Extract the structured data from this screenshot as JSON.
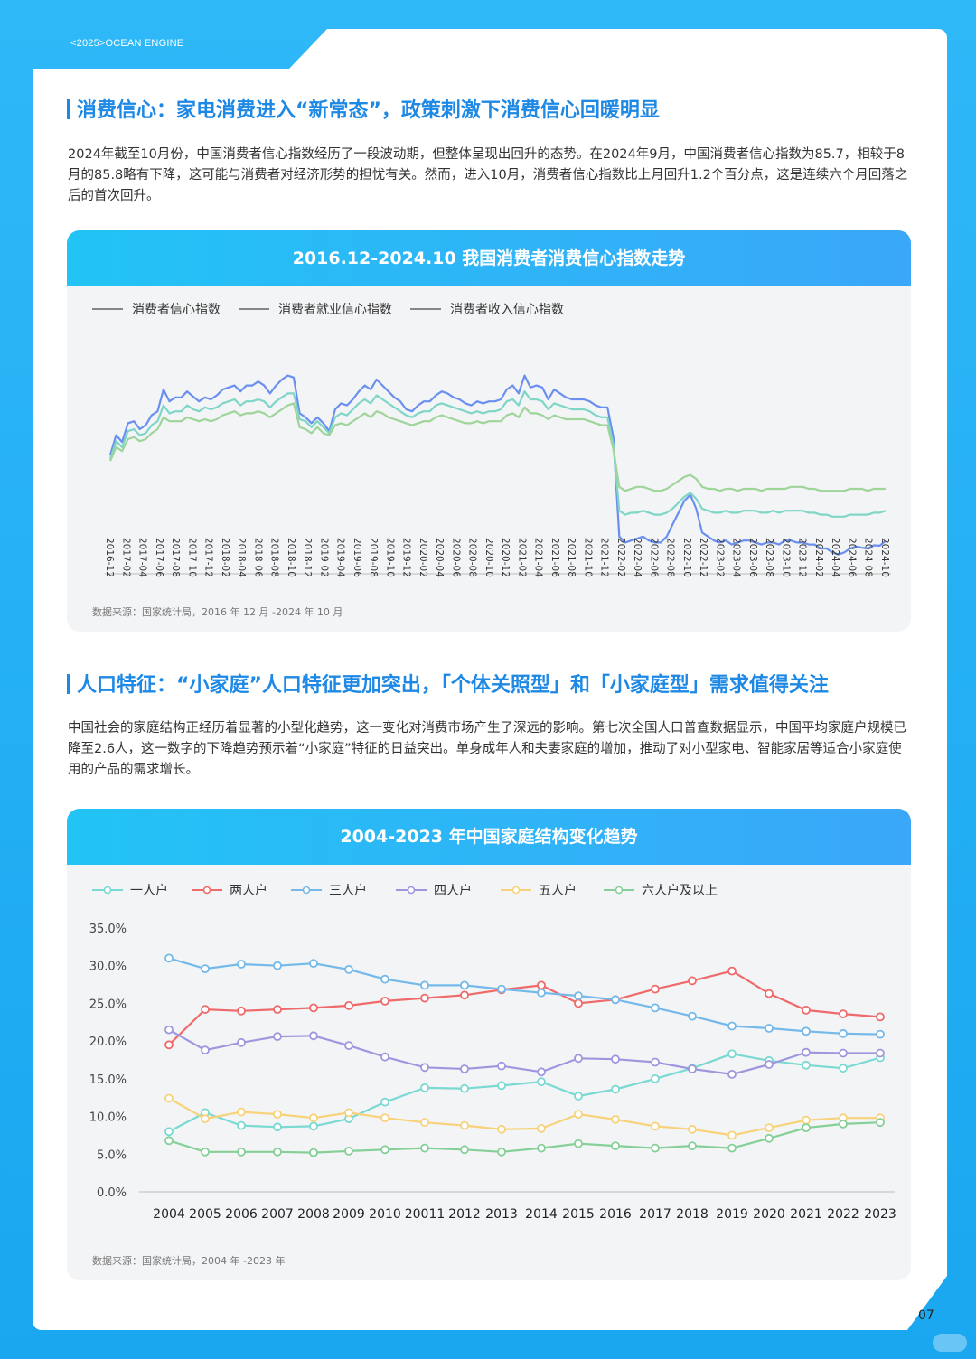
{
  "header": {
    "brand": "<2025>OCEAN  ENGINE"
  },
  "section1": {
    "title": "消费信心：家电消费进入“新常态”，政策刺激下消费信心回暖明显",
    "paragraph": "2024年截至10月份，中国消费者信心指数经历了一段波动期，但整体呈现出回升的态势。在2024年9月，中国消费者信心指数为85.7，相较于8月的85.8略有下降，这可能与消费者对经济形势的担忧有关。然而，进入10月，消费者信心指数比上月回升1.2个百分点，这是连续六个月回落之后的首次回升。",
    "chart_title": "2016.12-2024.10 我国消费者消费信心指数走势",
    "source": "数据来源：国家统计局，2016 年 12 月 -2024 年 10 月"
  },
  "section2": {
    "title": "人口特征：“小家庭”人口特征更加突出，「个体关照型」和「小家庭型」需求值得关注",
    "paragraph": "中国社会的家庭结构正经历着显著的小型化趋势，这一变化对消费市场产生了深远的影响。第七次全国人口普查数据显示，中国平均家庭户规模已降至2.6人，这一数字的下降趋势预示着“小家庭”特征的日益突出。单身成年人和夫妻家庭的增加，推动了对小型家电、智能家居等适合小家庭使用的产品的需求增长。",
    "chart_title": "2004-2023 年中国家庭结构变化趋势",
    "source": "数据来源：国家统计局，2004 年 -2023 年"
  },
  "page_number": "07",
  "chart_data": [
    {
      "type": "line",
      "title": "2016.12-2024.10 我国消费者消费信心指数走势",
      "legend_position": "top-left",
      "grid": false,
      "x_tick_labels": [
        "2016-12",
        "2017-02",
        "2017-04",
        "2017-06",
        "2017-08",
        "2017-10",
        "2017-12",
        "2018-02",
        "2018-04",
        "2018-06",
        "2018-08",
        "2018-10",
        "2018-12",
        "2019-02",
        "2019-04",
        "2019-06",
        "2019-08",
        "2019-10",
        "2019-12",
        "2020-02",
        "2020-04",
        "2020-06",
        "2020-08",
        "2020-10",
        "2020-12",
        "2021-02",
        "2021-04",
        "2021-06",
        "2021-08",
        "2021-10",
        "2021-12",
        "2022-02",
        "2022-04",
        "2022-06",
        "2022-08",
        "2022-10",
        "2022-12",
        "2023-02",
        "2023-04",
        "2023-06",
        "2023-08",
        "2023-10",
        "2023-12",
        "2024-02",
        "2024-04",
        "2024-06",
        "2024-08",
        "2024-10"
      ],
      "series": [
        {
          "name": "消费者信心指数",
          "color": "#6b8ff0",
          "values": [
            108.5,
            113.5,
            111.8,
            116.5,
            117.0,
            115.0,
            116.0,
            118.5,
            119.5,
            125.0,
            122.0,
            123.0,
            123.0,
            124.5,
            123.2,
            122.0,
            123.0,
            122.5,
            123.5,
            125.0,
            125.5,
            126.0,
            124.5,
            126.0,
            126.0,
            127.0,
            126.0,
            124.0,
            126.0,
            127.5,
            128.5,
            128.0,
            119.0,
            118.0,
            116.5,
            118.0,
            116.5,
            114.5,
            120.0,
            121.5,
            121.0,
            122.5,
            124.5,
            126.0,
            125.0,
            127.5,
            126.0,
            124.5,
            123.0,
            122.0,
            120.0,
            119.5,
            121.0,
            122.0,
            122.0,
            123.5,
            124.5,
            124.0,
            123.0,
            122.5,
            121.5,
            121.0,
            122.0,
            121.5,
            122.0,
            122.0,
            122.5,
            125.0,
            126.0,
            124.0,
            128.5,
            125.5,
            126.0,
            125.5,
            122.5,
            125.0,
            124.0,
            123.0,
            122.5,
            122.5,
            122.5,
            122.0,
            121.0,
            120.5,
            120.5,
            113.0,
            88.0,
            86.5,
            87.0,
            87.5,
            88.0,
            87.0,
            86.5,
            86.5,
            88.0,
            91.0,
            94.0,
            97.0,
            98.5,
            95.0,
            89.0,
            88.0,
            87.0,
            86.5,
            87.0,
            86.0,
            86.5,
            87.0,
            87.0,
            86.5,
            86.0,
            86.5,
            86.5,
            86.0,
            87.0,
            87.0,
            86.5,
            86.5,
            86.0,
            86.0,
            85.0,
            85.0,
            84.0,
            83.5,
            84.0,
            85.0,
            85.5,
            85.2,
            85.0,
            85.8,
            85.7,
            86.9
          ]
        },
        {
          "name": "消费者就业信心指数",
          "color": "#7fd6c6",
          "values": [
            107.5,
            112.0,
            110.5,
            114.5,
            115.0,
            113.5,
            114.0,
            116.0,
            117.0,
            121.0,
            119.0,
            119.5,
            119.5,
            121.0,
            120.0,
            119.5,
            120.5,
            120.0,
            120.5,
            121.5,
            122.0,
            122.5,
            121.0,
            122.0,
            122.0,
            122.5,
            122.0,
            120.5,
            122.0,
            123.0,
            124.0,
            124.0,
            117.5,
            117.0,
            115.5,
            117.0,
            115.5,
            114.0,
            118.0,
            119.0,
            118.5,
            120.0,
            121.5,
            122.5,
            121.5,
            123.5,
            122.5,
            121.5,
            120.5,
            119.5,
            118.5,
            118.0,
            119.0,
            119.5,
            119.5,
            121.0,
            121.5,
            121.0,
            120.5,
            120.0,
            119.5,
            119.0,
            119.5,
            119.0,
            119.5,
            119.5,
            120.0,
            122.0,
            122.5,
            121.0,
            124.5,
            122.5,
            122.5,
            122.0,
            120.0,
            121.5,
            121.0,
            120.5,
            120.0,
            120.0,
            120.0,
            119.5,
            118.5,
            118.0,
            118.0,
            111.0,
            94.5,
            93.5,
            94.0,
            94.0,
            94.5,
            94.0,
            93.5,
            93.5,
            94.0,
            95.0,
            96.5,
            98.0,
            99.0,
            97.5,
            95.0,
            94.5,
            94.0,
            94.0,
            94.5,
            94.0,
            94.0,
            94.5,
            94.5,
            94.5,
            94.0,
            94.0,
            94.5,
            94.0,
            94.5,
            94.5,
            94.5,
            94.5,
            94.0,
            94.0,
            93.5,
            93.5,
            93.0,
            93.0,
            93.0,
            93.5,
            93.5,
            93.5,
            93.5,
            94.0,
            94.0,
            94.5
          ]
        },
        {
          "name": "消费者收入信心指数",
          "color": "#9fd49a",
          "values": [
            107.0,
            110.5,
            109.5,
            112.5,
            113.0,
            112.0,
            112.5,
            114.0,
            115.0,
            118.0,
            117.0,
            117.0,
            117.0,
            118.0,
            117.5,
            117.0,
            117.5,
            117.0,
            117.5,
            118.5,
            119.0,
            119.5,
            118.5,
            119.0,
            119.0,
            119.5,
            119.0,
            118.0,
            119.0,
            120.0,
            121.0,
            121.5,
            115.5,
            115.0,
            114.0,
            115.5,
            114.0,
            113.5,
            116.0,
            116.5,
            116.0,
            117.0,
            118.0,
            119.0,
            118.0,
            119.5,
            119.0,
            118.0,
            117.5,
            117.0,
            116.5,
            116.0,
            116.5,
            117.0,
            117.0,
            118.0,
            118.5,
            118.0,
            117.5,
            117.0,
            116.5,
            116.5,
            117.0,
            116.5,
            117.0,
            117.0,
            117.0,
            118.5,
            119.0,
            118.0,
            120.5,
            119.0,
            119.0,
            118.5,
            117.5,
            118.5,
            118.0,
            117.5,
            117.5,
            117.5,
            117.5,
            117.0,
            116.5,
            116.0,
            116.0,
            110.0,
            100.5,
            99.5,
            100.0,
            100.5,
            100.5,
            100.0,
            99.5,
            99.5,
            100.0,
            101.0,
            102.0,
            103.0,
            103.5,
            102.5,
            100.5,
            100.0,
            100.0,
            99.5,
            100.0,
            100.0,
            99.5,
            100.0,
            100.0,
            100.0,
            99.5,
            100.0,
            100.0,
            100.0,
            100.0,
            100.5,
            100.5,
            100.5,
            100.0,
            100.0,
            99.5,
            99.5,
            99.5,
            99.5,
            99.5,
            100.0,
            100.0,
            100.0,
            99.5,
            100.0,
            100.0,
            100.0
          ]
        }
      ]
    },
    {
      "type": "line",
      "title": "2004-2023 年中国家庭结构变化趋势",
      "legend_position": "top-left",
      "grid": false,
      "categories": [
        "2004",
        "2005",
        "2006",
        "2007",
        "2008",
        "2009",
        "2010",
        "20011",
        "2012",
        "2013",
        "2014",
        "2015",
        "2016",
        "2017",
        "2018",
        "2019",
        "2020",
        "2021",
        "2022",
        "2023"
      ],
      "y_tick_labels": [
        "0.0%",
        "5.0%",
        "10.0%",
        "15.0%",
        "20.0%",
        "25.0%",
        "30.0%",
        "35.0%"
      ],
      "ylim": [
        0,
        35
      ],
      "series": [
        {
          "name": "一人户",
          "color": "#7ad9d3",
          "values": [
            8.0,
            10.5,
            8.8,
            8.6,
            8.7,
            9.7,
            11.9,
            13.8,
            13.7,
            14.1,
            14.6,
            12.7,
            13.6,
            15.0,
            16.4,
            18.3,
            17.4,
            16.8,
            16.4,
            17.8
          ]
        },
        {
          "name": "两人户",
          "color": "#ef6a6a",
          "values": [
            19.5,
            24.2,
            24.0,
            24.2,
            24.4,
            24.7,
            25.3,
            25.7,
            26.1,
            26.8,
            27.4,
            25.0,
            25.5,
            26.9,
            28.0,
            29.3,
            26.3,
            24.1,
            23.6,
            23.2
          ]
        },
        {
          "name": "三人户",
          "color": "#74b9ea",
          "values": [
            31.0,
            29.6,
            30.2,
            30.0,
            30.3,
            29.5,
            28.2,
            27.4,
            27.4,
            26.9,
            26.4,
            26.0,
            25.5,
            24.4,
            23.3,
            22.0,
            21.7,
            21.3,
            21.0,
            20.9
          ]
        },
        {
          "name": "四人户",
          "color": "#9f97de",
          "values": [
            21.5,
            18.8,
            19.8,
            20.6,
            20.7,
            19.4,
            17.9,
            16.5,
            16.3,
            16.7,
            15.9,
            17.7,
            17.6,
            17.2,
            16.3,
            15.6,
            16.9,
            18.5,
            18.4,
            18.4
          ]
        },
        {
          "name": "五人户",
          "color": "#f8d27a",
          "values": [
            12.4,
            9.7,
            10.6,
            10.3,
            9.8,
            10.5,
            9.8,
            9.2,
            8.8,
            8.3,
            8.4,
            10.3,
            9.6,
            8.7,
            8.3,
            7.5,
            8.5,
            9.5,
            9.8,
            9.8
          ]
        },
        {
          "name": "六人户及以上",
          "color": "#86cf98",
          "values": [
            6.8,
            5.3,
            5.3,
            5.3,
            5.2,
            5.4,
            5.6,
            5.8,
            5.6,
            5.3,
            5.8,
            6.4,
            6.1,
            5.8,
            6.1,
            5.8,
            7.1,
            8.5,
            9.0,
            9.2
          ]
        }
      ]
    }
  ]
}
